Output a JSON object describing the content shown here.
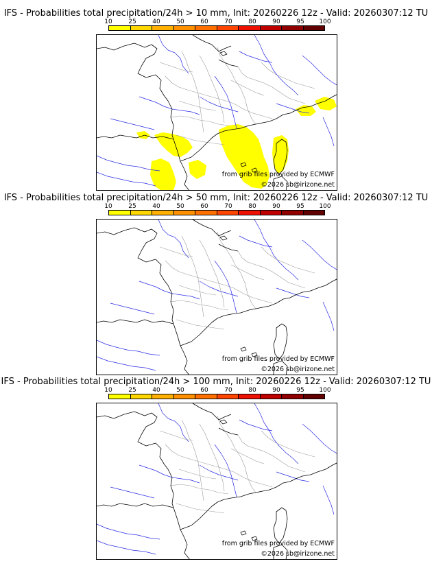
{
  "panels": [
    {
      "title": "IFS - Probabilities total precipitation/24h > 10 mm, Init: 20260226 12z - Valid: 20260307:12 TU",
      "colorbar_ticks": [
        "10",
        "25",
        "40",
        "50",
        "60",
        "70",
        "80",
        "90",
        "95",
        "100"
      ],
      "credit_line": "from grib files provided by ECMWF",
      "copyright": "©2026 sb@irizone.net",
      "probability_area": "yes"
    },
    {
      "title": "IFS - Probabilities total precipitation/24h > 50 mm, Init: 20260226 12z - Valid: 20260307:12 TU",
      "colorbar_ticks": [
        "10",
        "25",
        "40",
        "50",
        "60",
        "70",
        "80",
        "90",
        "95",
        "100"
      ],
      "credit_line": "from grib files provided by ECMWF",
      "copyright": "©2026 sb@irizone.net",
      "probability_area": "no"
    },
    {
      "title": "IFS - Probabilities total precipitation/24h > 100 mm, Init: 20260226 12z - Valid: 20260307:12 TU",
      "colorbar_ticks": [
        "10",
        "25",
        "40",
        "50",
        "60",
        "70",
        "80",
        "90",
        "95",
        "100"
      ],
      "credit_line": "from grib files provided by ECMWF",
      "copyright": "©2026 sb@irizone.net",
      "probability_area": "no"
    }
  ],
  "colors": {
    "scale": [
      "#ffff00",
      "#ffd700",
      "#ffb000",
      "#ff9000",
      "#ff7000",
      "#ff4500",
      "#ee1000",
      "#c00000",
      "#900000",
      "#600000"
    ],
    "probability_fill": "#ffff00",
    "coast": "#000000",
    "border": "#9a9a9a",
    "river": "#2a2ae6"
  }
}
